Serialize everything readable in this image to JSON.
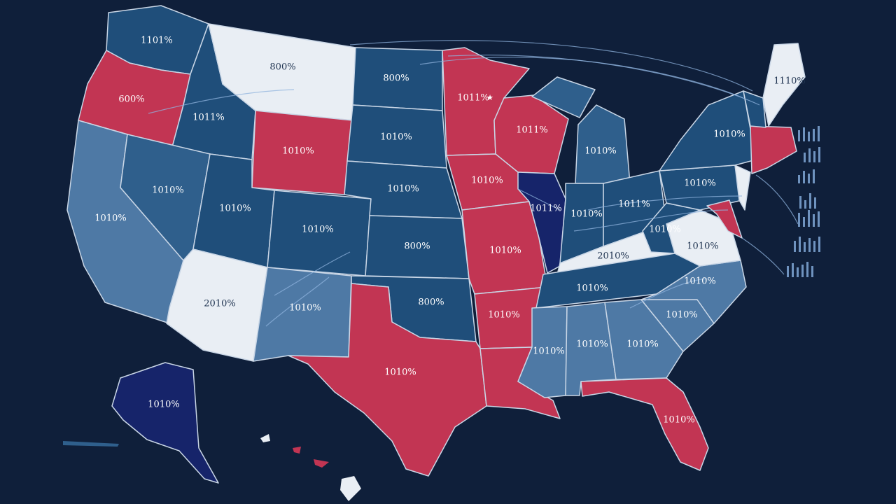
{
  "colors": {
    "background": "#0f1f3a",
    "red": "#c23553",
    "dark_blue": "#1f4e7a",
    "mid_blue": "#2f5f8c",
    "light_blue": "#4e79a5",
    "white": "#e9eef4",
    "navy": "#16246a",
    "border": "#c9d6e6"
  },
  "labels": {
    "wa": "1101%",
    "mt": "800%",
    "nd": "800%",
    "mn": "1011%",
    "me": "1110%",
    "or": "600%",
    "id": "1011%",
    "wi": "1011%",
    "wy": "1010%",
    "sd": "1010%",
    "mi": "1010%",
    "ny": "1010%",
    "nv": "1010%",
    "ia": "1010%",
    "ne": "1010%",
    "pa": "1010%",
    "ca": "1010%",
    "ut": "1010%",
    "co": "1010%",
    "il": "1011%",
    "in": "1010%",
    "oh": "1011%",
    "ks": "800%",
    "mo": "1010%",
    "wv": "1010%",
    "va": "1010%",
    "ky": "2010%",
    "az": "2010%",
    "nm": "1010%",
    "ok": "800%",
    "tn": "1010%",
    "nc": "1010%",
    "ar": "1010%",
    "ms": "1010%",
    "al": "1010%",
    "ga": "1010%",
    "sc": "1010%",
    "tx": "1010%",
    "fl": "1010%",
    "ak": "1010%"
  }
}
